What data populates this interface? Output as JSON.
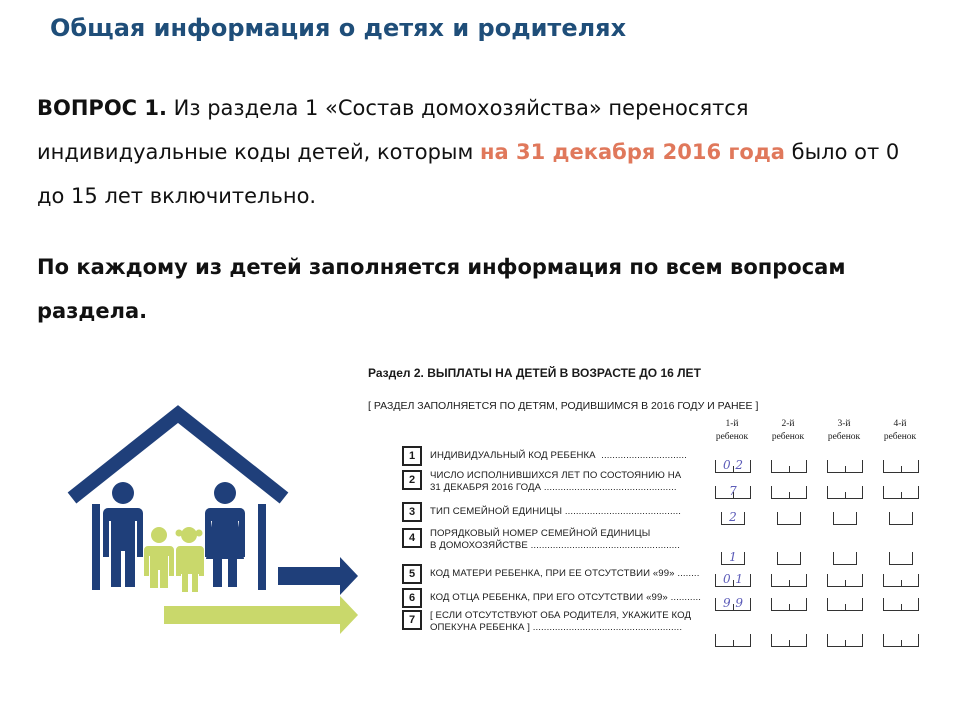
{
  "page_title": "Общая информация о детях и родителях",
  "question": {
    "label": "ВОПРОС 1.",
    "text_before": " Из раздела 1 «Состав домохозяйства» переносятся индивидуальные коды детей, которым ",
    "highlight": "на 31 декабря 2016 года",
    "text_after": " было от 0 до 15 лет включительно."
  },
  "instruction": "По каждому из детей заполняется информация по всем вопросам раздела.",
  "colors": {
    "title": "#1f4e79",
    "accent": "#e0785b",
    "house": "#1f3f7a",
    "children": "#c9d86b"
  },
  "illustration": {
    "icon": "house-family-icon"
  },
  "form": {
    "title": "Раздел 2. ВЫПЛАТЫ НА ДЕТЕЙ В ВОЗРАСТЕ ДО 16 ЛЕТ",
    "note": "[ РАЗДЕЛ ЗАПОЛНЯЕТСЯ ПО ДЕТЯМ, РОДИВШИМСЯ В 2016 ГОДУ И РАНЕЕ ]",
    "columns": [
      [
        "1-й",
        "ребенок"
      ],
      [
        "2-й",
        "ребенок"
      ],
      [
        "3-й",
        "ребенок"
      ],
      [
        "4-й",
        "ребенок"
      ]
    ],
    "rows": [
      {
        "num": "1",
        "label": "ИНДИВИДУАЛЬНЫЙ КОД РЕБЕНКА  ...............................",
        "value": "02",
        "kind": "double"
      },
      {
        "num": "2",
        "label": "ЧИСЛО ИСПОЛНИВШИХСЯ ЛЕТ ПО СОСТОЯНИЮ НА\n31 ДЕКАБРЯ 2016 ГОДА ................................................",
        "value": "7",
        "kind": "double"
      },
      {
        "num": "3",
        "label": "ТИП СЕМЕЙНОЙ ЕДИНИЦЫ ..........................................",
        "value": "2",
        "kind": "single"
      },
      {
        "num": "4",
        "label": "ПОРЯДКОВЫЙ НОМЕР СЕМЕЙНОЙ ЕДИНИЦЫ\nВ ДОМОХОЗЯЙСТВЕ ......................................................",
        "value": "1",
        "kind": "single"
      },
      {
        "num": "5",
        "label": "КОД МАТЕРИ РЕБЕНКА, ПРИ ЕЕ ОТСУТСТВИИ «99» ........",
        "value": "01",
        "kind": "double"
      },
      {
        "num": "6",
        "label": "КОД ОТЦА РЕБЕНКА, ПРИ ЕГО ОТСУТСТВИИ «99» ...........",
        "value": "99",
        "kind": "double"
      },
      {
        "num": "7",
        "label": "[ ЕСЛИ ОТСУТСТВУЮТ ОБА РОДИТЕЛЯ, УКАЖИТЕ КОД\nОПЕКУНА РЕБЕНКА ] ......................................................",
        "value": "",
        "kind": "double"
      }
    ]
  }
}
